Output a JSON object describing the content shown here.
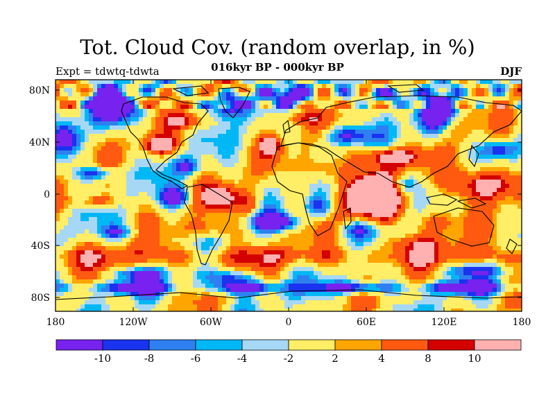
{
  "title": "Tot. Cloud Cov. (random overlap, in %)",
  "subtitle": "016kyr BP - 000kyr BP",
  "left_label": "Expt = tdwtq-tdwta",
  "season": "DJF",
  "lat_ticks": [
    "80N",
    "40N",
    "0",
    "40S",
    "80S"
  ],
  "lon_ticks": [
    "180",
    "120W",
    "60W",
    "0",
    "60E",
    "120E",
    "180"
  ],
  "colorbar": {
    "colors": [
      "#7722ee",
      "#1a33ee",
      "#2e80f0",
      "#00b8f5",
      "#a6d8f5",
      "#ffee66",
      "#ffa500",
      "#ff5a10",
      "#d40000",
      "#ffb0b0"
    ],
    "labels": [
      "-10",
      "-8",
      "-6",
      "-4",
      "-2",
      "2",
      "4",
      "8",
      "10"
    ]
  }
}
